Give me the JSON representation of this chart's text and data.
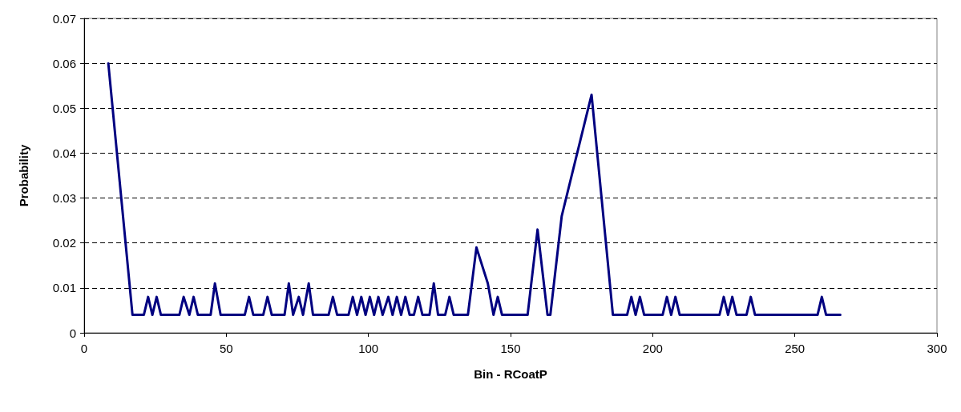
{
  "chart_data": {
    "type": "line",
    "xlabel": "Bin - RCoatP",
    "ylabel": "Probability",
    "xlim": [
      0,
      300
    ],
    "xticks": [
      0,
      50,
      100,
      150,
      200,
      250,
      300
    ],
    "ylim": [
      0,
      0.07
    ],
    "yticks": [
      0,
      0.01,
      0.02,
      0.03,
      0.04,
      0.05,
      0.06,
      0.07
    ],
    "grid": "y",
    "marker": "none",
    "line_style": "solid",
    "series": [
      {
        "color": "#000080",
        "x": [
          8.5,
          17,
          21,
          22.5,
          24,
          25.5,
          27,
          33.5,
          35,
          37,
          38.5,
          40,
          44.5,
          46,
          48,
          56.5,
          58,
          59.5,
          63,
          64.5,
          66,
          70.5,
          72,
          73.5,
          75.5,
          77,
          79,
          80.5,
          86,
          87.5,
          89,
          93,
          94.5,
          96,
          97.5,
          99,
          100.5,
          102,
          103.5,
          105,
          107,
          108.5,
          110,
          111.5,
          113,
          114.5,
          116,
          117.5,
          119,
          121.5,
          123,
          124.5,
          127,
          128.5,
          130,
          135,
          138,
          142,
          144,
          145.5,
          147,
          156,
          159.5,
          163,
          164,
          168,
          178.5,
          186,
          191,
          192.5,
          194,
          195.5,
          197,
          203.5,
          205,
          206.5,
          208,
          209.5,
          223.5,
          225,
          226.5,
          228,
          229.5,
          233,
          234.5,
          236,
          258,
          259.5,
          261,
          266
        ],
        "values": [
          0.06,
          0.004,
          0.004,
          0.008,
          0.004,
          0.008,
          0.004,
          0.004,
          0.008,
          0.004,
          0.008,
          0.004,
          0.004,
          0.011,
          0.004,
          0.004,
          0.008,
          0.004,
          0.004,
          0.008,
          0.004,
          0.004,
          0.011,
          0.004,
          0.008,
          0.004,
          0.011,
          0.004,
          0.004,
          0.008,
          0.004,
          0.004,
          0.008,
          0.004,
          0.008,
          0.004,
          0.008,
          0.004,
          0.008,
          0.004,
          0.008,
          0.004,
          0.008,
          0.004,
          0.008,
          0.004,
          0.004,
          0.008,
          0.004,
          0.004,
          0.011,
          0.004,
          0.004,
          0.008,
          0.004,
          0.004,
          0.019,
          0.011,
          0.004,
          0.008,
          0.004,
          0.004,
          0.023,
          0.004,
          0.004,
          0.026,
          0.053,
          0.004,
          0.004,
          0.008,
          0.004,
          0.008,
          0.004,
          0.004,
          0.008,
          0.004,
          0.008,
          0.004,
          0.004,
          0.008,
          0.004,
          0.008,
          0.004,
          0.004,
          0.008,
          0.004,
          0.004,
          0.008,
          0.004,
          0.004
        ]
      }
    ]
  }
}
